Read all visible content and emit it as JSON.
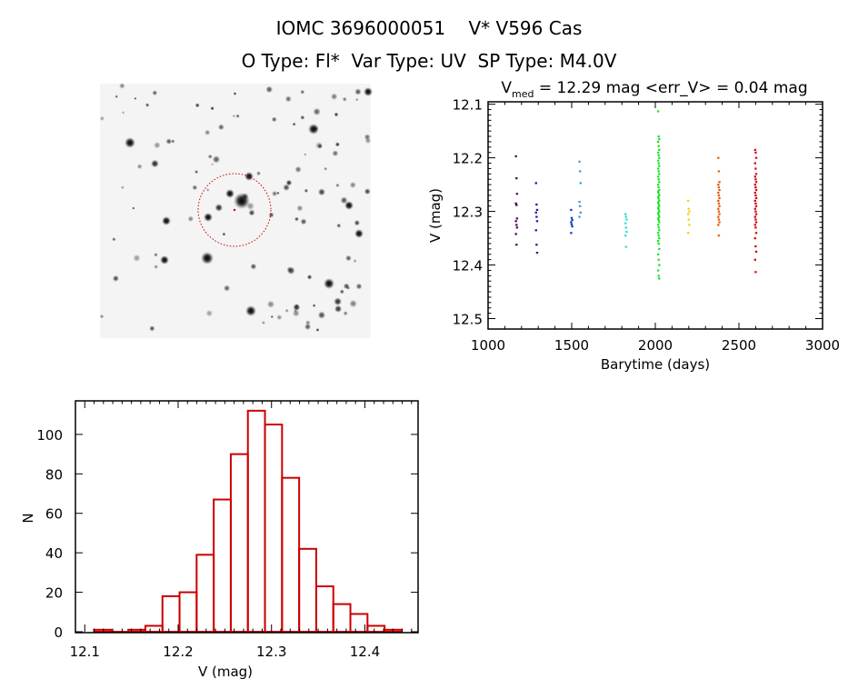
{
  "header": {
    "title": "IOMC 3696000051    V* V596 Cas",
    "subtitle": "O Type: Fl*  Var Type: UV  SP Type: M4.0V"
  },
  "finder_image": {
    "target_marker_color": "#cc0000"
  },
  "chart_data": [
    {
      "type": "scatter",
      "title_prefix": "V",
      "title_sub": "med",
      "title_rest": " = 12.29 mag <err_V> = 0.04 mag",
      "xlabel": "Barytime (days)",
      "ylabel": "V (mag)",
      "xlim": [
        1000,
        3000
      ],
      "ylim": [
        12.1,
        12.5
      ],
      "y_inverted": true,
      "xticks": [
        "1000",
        "1500",
        "2000",
        "2500",
        "3000"
      ],
      "yticks": [
        "12.1",
        "12.2",
        "12.3",
        "12.4",
        "12.5"
      ],
      "grid": false,
      "groups": [
        {
          "x": 1170,
          "color": "#4b0a5a",
          "v": [
            12.197,
            12.238,
            12.267,
            12.285,
            12.288,
            12.313,
            12.318,
            12.325,
            12.33,
            12.342,
            12.362
          ]
        },
        {
          "x": 1290,
          "color": "#2a1c90",
          "v": [
            12.247,
            12.287,
            12.297,
            12.302,
            12.31,
            12.318,
            12.335,
            12.362,
            12.377
          ]
        },
        {
          "x": 1500,
          "color": "#1a3fc0",
          "v": [
            12.297,
            12.312,
            12.316,
            12.32,
            12.324,
            12.328,
            12.34
          ]
        },
        {
          "x": 1550,
          "color": "#3aa0d8",
          "v": [
            12.207,
            12.225,
            12.247,
            12.282,
            12.29,
            12.302,
            12.31
          ]
        },
        {
          "x": 1825,
          "color": "#30e0d0",
          "v": [
            12.305,
            12.31,
            12.315,
            12.322,
            12.33,
            12.338,
            12.345,
            12.366
          ]
        },
        {
          "x": 2020,
          "color": "#20e030",
          "v": [
            12.113,
            12.16,
            12.165,
            12.17,
            12.178,
            12.185,
            12.19,
            12.195,
            12.2,
            12.205,
            12.21,
            12.215,
            12.22,
            12.225,
            12.23,
            12.235,
            12.24,
            12.245,
            12.25,
            12.255,
            12.26,
            12.263,
            12.266,
            12.27,
            12.273,
            12.276,
            12.28,
            12.283,
            12.286,
            12.29,
            12.293,
            12.296,
            12.3,
            12.303,
            12.306,
            12.31,
            12.313,
            12.316,
            12.32,
            12.325,
            12.33,
            12.335,
            12.34,
            12.345,
            12.35,
            12.355,
            12.36,
            12.37,
            12.38,
            12.39,
            12.4,
            12.41,
            12.42,
            12.425
          ]
        },
        {
          "x": 2200,
          "color": "#f0d020",
          "v": [
            12.28,
            12.295,
            12.3,
            12.305,
            12.315,
            12.325,
            12.34
          ]
        },
        {
          "x": 2380,
          "color": "#e06010",
          "v": [
            12.2,
            12.225,
            12.245,
            12.25,
            12.255,
            12.26,
            12.265,
            12.27,
            12.275,
            12.28,
            12.285,
            12.29,
            12.295,
            12.3,
            12.305,
            12.31,
            12.315,
            12.32,
            12.325,
            12.345
          ]
        },
        {
          "x": 2600,
          "color": "#d01010",
          "v": [
            12.185,
            12.19,
            12.2,
            12.21,
            12.22,
            12.23,
            12.235,
            12.24,
            12.245,
            12.25,
            12.255,
            12.26,
            12.265,
            12.27,
            12.275,
            12.28,
            12.285,
            12.29,
            12.295,
            12.3,
            12.305,
            12.31,
            12.315,
            12.32,
            12.325,
            12.33,
            12.34,
            12.35,
            12.365,
            12.375,
            12.39,
            12.413
          ]
        }
      ]
    },
    {
      "type": "bar",
      "subtype": "histogram",
      "xlabel": "V (mag)",
      "ylabel": "N",
      "xlim": [
        12.09,
        12.457
      ],
      "ylim": [
        0,
        117
      ],
      "xticks": [
        "12.1",
        "12.2",
        "12.3",
        "12.4"
      ],
      "yticks": [
        "0",
        "20",
        "40",
        "60",
        "80",
        "100"
      ],
      "bin_start": 12.11,
      "bin_width": 0.0183,
      "counts": [
        1,
        0,
        1,
        3,
        18,
        20,
        39,
        67,
        90,
        112,
        105,
        78,
        42,
        23,
        14,
        9,
        3,
        1
      ],
      "color": "#cc0000",
      "grid": false
    }
  ]
}
